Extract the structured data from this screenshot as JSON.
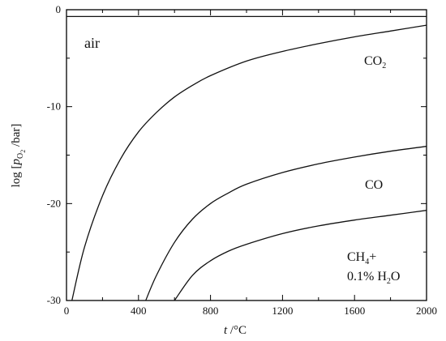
{
  "chart_data": {
    "type": "line",
    "xlabel": "t /°C",
    "ylabel": "log [p_O2 /bar]",
    "xlim": [
      0,
      2000
    ],
    "ylim": [
      -30,
      0
    ],
    "x_ticks": [
      0,
      400,
      800,
      1200,
      1600,
      2000
    ],
    "y_ticks": [
      0,
      -10,
      -20,
      -30
    ],
    "grid": false,
    "series": [
      {
        "name": "air",
        "x": [
          0,
          2000
        ],
        "y": [
          -0.7,
          -0.7
        ]
      },
      {
        "name": "CO2",
        "x": [
          30,
          100,
          200,
          300,
          400,
          500,
          600,
          700,
          800,
          1000,
          1200,
          1400,
          1600,
          1800,
          2000
        ],
        "y": [
          -30,
          -24.5,
          -19.2,
          -15.4,
          -12.6,
          -10.6,
          -9.0,
          -7.8,
          -6.8,
          -5.3,
          -4.3,
          -3.5,
          -2.8,
          -2.2,
          -1.6
        ]
      },
      {
        "name": "CO",
        "x": [
          440,
          500,
          600,
          700,
          800,
          900,
          1000,
          1200,
          1400,
          1600,
          1800,
          2000
        ],
        "y": [
          -30,
          -27.4,
          -24.0,
          -21.6,
          -20.0,
          -18.9,
          -18.0,
          -16.8,
          -15.9,
          -15.2,
          -14.6,
          -14.1
        ]
      },
      {
        "name": "CH4+ 0.1% H2O",
        "x": [
          600,
          700,
          800,
          900,
          1000,
          1200,
          1400,
          1600,
          1800,
          2000
        ],
        "y": [
          -30,
          -27.4,
          -25.9,
          -24.9,
          -24.2,
          -23.1,
          -22.3,
          -21.7,
          -21.2,
          -20.7
        ]
      }
    ],
    "annotations": {
      "air": "air",
      "co2_base": "CO",
      "co2_sub": "2",
      "co": "CO",
      "ch4_base": "CH",
      "ch4_sub": "4",
      "ch4_plus": "+",
      "h2o_prefix": "0.1% H",
      "h2o_sub": "2",
      "h2o_suffix": "O"
    },
    "axis_text": {
      "x_italic": "t",
      "x_unit": " /°C",
      "y_prefix": "log [",
      "y_p": "p",
      "y_sub": "O",
      "y_subsub": "2",
      "y_suffix": " /bar]"
    }
  }
}
